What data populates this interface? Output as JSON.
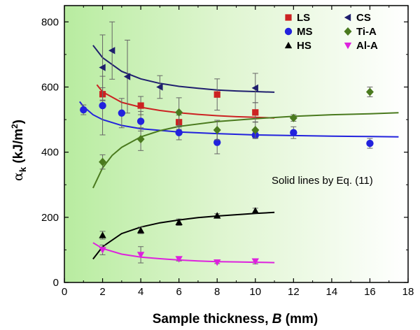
{
  "chart_data": {
    "type": "scatter",
    "xlabel_main": "Sample thickness, ",
    "xlabel_var": "B",
    "xlabel_unit": " (mm)",
    "ylabel_symbol": "α",
    "ylabel_sub": "k",
    "ylabel_unit_pre": " (kJ/m",
    "ylabel_sup": "2",
    "ylabel_unit_post": ")",
    "xlim": [
      0,
      18
    ],
    "ylim": [
      0,
      850
    ],
    "x_ticks": [
      0,
      2,
      4,
      6,
      8,
      10,
      12,
      14,
      16,
      18
    ],
    "y_ticks": [
      0,
      200,
      400,
      600,
      800
    ],
    "background": "green-to-white horizontal gradient",
    "annotation": "Solid lines by Eq. (11)",
    "legend_position": "top-right",
    "series": [
      {
        "name": "LS",
        "marker": "square",
        "color": "#cc2222",
        "x": [
          2,
          4,
          6,
          8,
          10
        ],
        "y": [
          578,
          543,
          492,
          577,
          522
        ],
        "err": [
          20,
          28,
          22,
          48,
          30
        ],
        "fit_x": [
          1.7,
          2,
          3,
          4,
          5,
          6,
          7,
          8,
          9,
          10,
          11
        ],
        "fit_y": [
          607,
          585,
          553,
          538,
          528,
          521,
          516,
          512,
          509,
          507,
          505
        ]
      },
      {
        "name": "CS",
        "marker": "triangle-left",
        "color": "#1f1f6e",
        "x": [
          2,
          2.5,
          3.3,
          5,
          10
        ],
        "y": [
          660,
          712,
          632,
          600,
          597
        ],
        "err": [
          100,
          88,
          112,
          35,
          45
        ],
        "fit_x": [
          1.5,
          2,
          3,
          4,
          5,
          6,
          7,
          8,
          9,
          10,
          11
        ],
        "fit_y": [
          728,
          690,
          648,
          625,
          611,
          602,
          596,
          591,
          588,
          586,
          584
        ]
      },
      {
        "name": "MS",
        "marker": "circle",
        "color": "#2222dd",
        "x": [
          1,
          2,
          3,
          4,
          6,
          8,
          10,
          12,
          16
        ],
        "y": [
          530,
          543,
          520,
          495,
          460,
          430,
          452,
          460,
          427
        ],
        "err": [
          15,
          90,
          45,
          30,
          22,
          35,
          10,
          18,
          15
        ],
        "fit_x": [
          0.8,
          1,
          1.5,
          2,
          3,
          4,
          6,
          8,
          10,
          12,
          14,
          16,
          17.5
        ],
        "fit_y": [
          555,
          540,
          515,
          500,
          482,
          472,
          462,
          457,
          453,
          451,
          449,
          448,
          447
        ]
      },
      {
        "name": "Ti-A",
        "marker": "diamond",
        "color": "#4a7a1e",
        "x": [
          2,
          4,
          6,
          8,
          10,
          12,
          16
        ],
        "y": [
          370,
          440,
          522,
          468,
          468,
          505,
          585
        ],
        "err": [
          22,
          35,
          45,
          30,
          25,
          10,
          15
        ],
        "fit_x": [
          1.5,
          2,
          2.5,
          3,
          4,
          5,
          6,
          8,
          10,
          12,
          14,
          16,
          17.5
        ],
        "fit_y": [
          290,
          352,
          390,
          415,
          447,
          466,
          479,
          494,
          503,
          510,
          515,
          518,
          521
        ]
      },
      {
        "name": "HS",
        "marker": "triangle-up",
        "color": "#000000",
        "x": [
          2,
          4,
          6,
          8,
          10
        ],
        "y": [
          145,
          160,
          185,
          205,
          220
        ],
        "err": [
          12,
          10,
          10,
          6,
          8
        ],
        "fit_x": [
          1.5,
          2,
          3,
          4,
          5,
          6,
          7,
          8,
          9,
          10,
          11
        ],
        "fit_y": [
          72,
          110,
          150,
          170,
          183,
          192,
          199,
          204,
          208,
          212,
          215
        ]
      },
      {
        "name": "Al-A",
        "marker": "triangle-down",
        "color": "#dd22dd",
        "x": [
          2,
          4,
          6,
          8,
          10
        ],
        "y": [
          100,
          85,
          72,
          62,
          65
        ],
        "err": [
          15,
          25,
          6,
          4,
          8
        ],
        "fit_x": [
          1.5,
          2,
          3,
          4,
          5,
          6,
          7,
          8,
          9,
          10,
          11
        ],
        "fit_y": [
          122,
          104,
          87,
          78,
          73,
          69,
          66,
          64,
          63,
          62,
          61
        ]
      }
    ]
  }
}
